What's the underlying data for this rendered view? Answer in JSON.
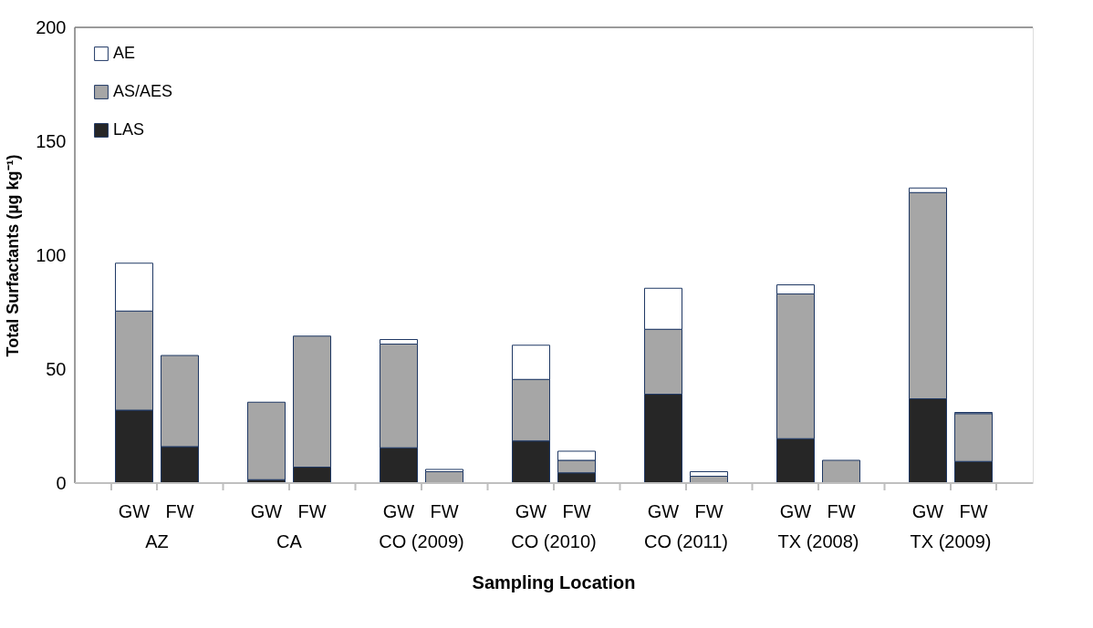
{
  "chart_data": {
    "type": "bar",
    "stacked": true,
    "xlabel": "Sampling Location",
    "ylabel": "Total Surfactants (µg kg⁻¹)",
    "categories": [
      "GW",
      "FW",
      "GW",
      "FW",
      "GW",
      "FW",
      "GW",
      "FW",
      "GW",
      "FW",
      "GW",
      "FW",
      "GW",
      "FW"
    ],
    "annotations": [
      "AZ",
      "CA",
      "CO (2009)",
      "CO (2010)",
      "CO (2011)",
      "TX (2008)",
      "TX (2009)"
    ],
    "series": [
      {
        "name": "LAS",
        "color": "#262626",
        "values": [
          32,
          16,
          1.5,
          7,
          15.5,
          0,
          18.5,
          4.5,
          39,
          0,
          19.5,
          0,
          37,
          9.5
        ]
      },
      {
        "name": "AS/AES",
        "color": "#a6a6a6",
        "values": [
          43.5,
          40,
          34,
          57.5,
          45.5,
          5,
          27,
          5.5,
          28.5,
          3,
          63.5,
          10,
          90.5,
          21
        ]
      },
      {
        "name": "AE",
        "color": "#ffffff",
        "values": [
          21,
          0,
          0,
          0,
          2,
          1,
          15,
          4,
          18,
          2,
          4,
          0,
          2,
          0.5
        ]
      }
    ],
    "ylim": [
      0,
      200
    ],
    "yticks": [
      0,
      50,
      100,
      150,
      200
    ],
    "grid": false,
    "legend": "top left"
  }
}
